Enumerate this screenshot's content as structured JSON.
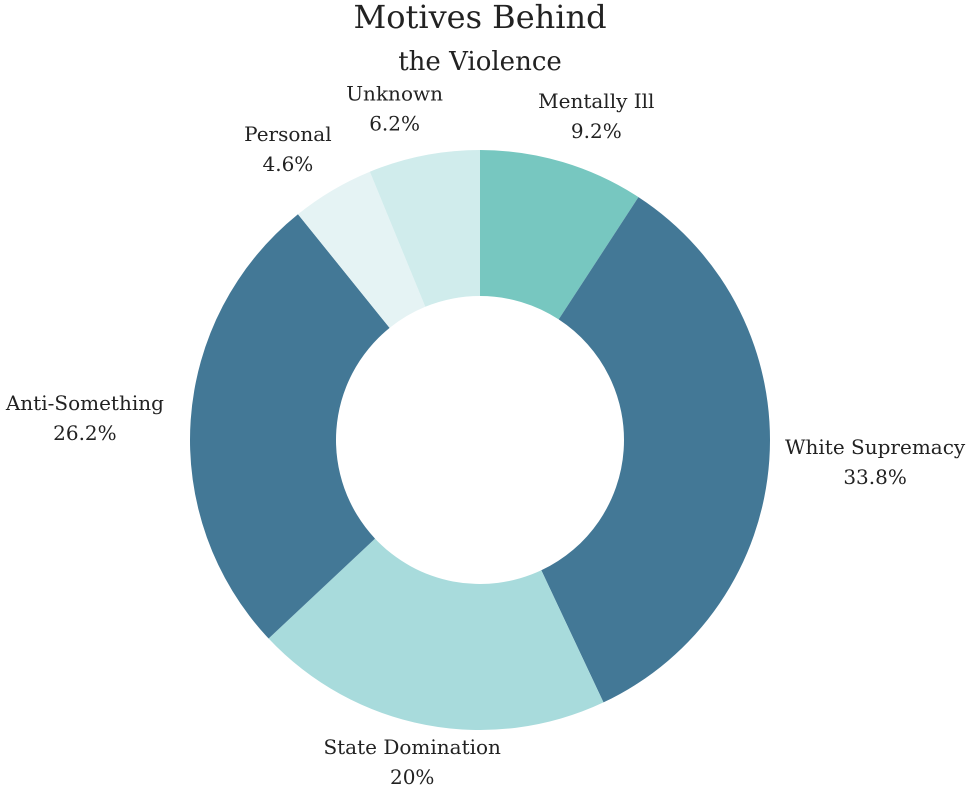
{
  "chart_data": {
    "type": "pie",
    "style": "donut",
    "title_line1": "Motives Behind",
    "title_line2": "the Violence",
    "slices": [
      {
        "label": "Mentally Ill",
        "value": 9.2,
        "value_label": "9.2%",
        "color": "#77C7C0"
      },
      {
        "label": "White Supremacy",
        "value": 33.8,
        "value_label": "33.8%",
        "color": "#437896"
      },
      {
        "label": "State Domination",
        "value": 20,
        "value_label": "20%",
        "color": "#A8DBDC"
      },
      {
        "label": "Anti-Something",
        "value": 26.2,
        "value_label": "26.2%",
        "color": "#437896"
      },
      {
        "label": "Personal",
        "value": 4.6,
        "value_label": "4.6%",
        "color": "#E5F3F4"
      },
      {
        "label": "Unknown",
        "value": 6.2,
        "value_label": "6.2%",
        "color": "#D0ECEC"
      }
    ]
  }
}
